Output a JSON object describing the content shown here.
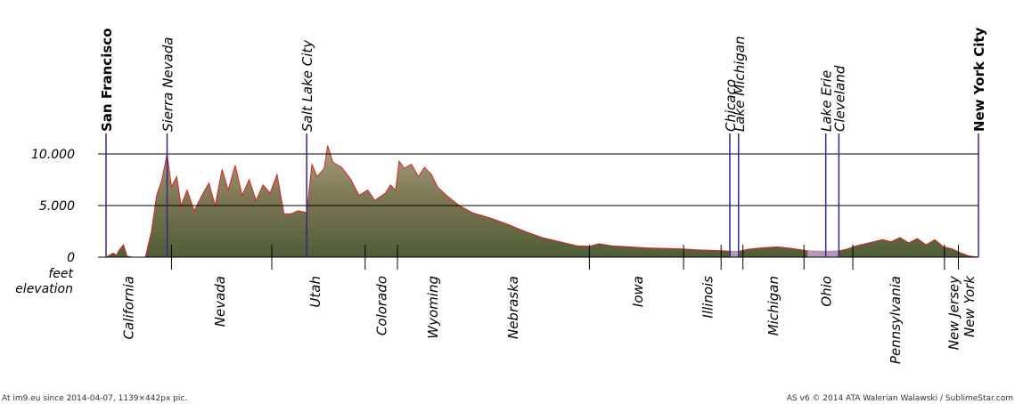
{
  "chart_data": {
    "type": "area",
    "y_ticks": [
      "10.000",
      "5.000",
      "0"
    ],
    "y_tick_values": [
      10000,
      5000,
      0
    ],
    "y_unit_label": [
      "feet",
      "elevation"
    ],
    "ylim": [
      0,
      10000
    ],
    "xlim": [
      0,
      100
    ],
    "grid": true,
    "fill_color": "#7a7550",
    "line_color": "#dd2222",
    "marker_color": "#2a2a8a",
    "places": [
      {
        "label": "San Francisco",
        "bold": true,
        "x": 0.0
      },
      {
        "label": "Sierra Nevada",
        "bold": false,
        "x": 7.0
      },
      {
        "label": "Salt Lake City",
        "bold": false,
        "x": 23.0
      },
      {
        "label": "Chicaco",
        "bold": false,
        "x": 71.5
      },
      {
        "label": "Lake Michigan",
        "bold": false,
        "x": 72.5
      },
      {
        "label": "Lake Erie",
        "bold": false,
        "x": 82.5
      },
      {
        "label": "Cleveland",
        "bold": false,
        "x": 84.0
      },
      {
        "label": "New York City",
        "bold": true,
        "x": 100.0
      }
    ],
    "states": [
      {
        "label": "California",
        "x": 2.6
      },
      {
        "label": "Nevada",
        "x": 13.1
      },
      {
        "label": "Utah",
        "x": 24.0
      },
      {
        "label": "Colorado",
        "x": 31.6
      },
      {
        "label": "Wyoming",
        "x": 37.5
      },
      {
        "label": "Nebraska",
        "x": 46.7
      },
      {
        "label": "Iowa",
        "x": 61.0
      },
      {
        "label": "Illinois",
        "x": 69.0
      },
      {
        "label": "Michigan",
        "x": 76.5
      },
      {
        "label": "Ohio",
        "x": 82.6
      },
      {
        "label": "Pennsylvania",
        "x": 90.5
      },
      {
        "label": "New Jersey",
        "x": 97.2
      },
      {
        "label": "New York",
        "x": 99.0
      }
    ],
    "state_borders_x": [
      7.5,
      19.0,
      29.7,
      33.4,
      55.4,
      66.2,
      70.5,
      73.0,
      80.0,
      85.6,
      96.1,
      97.7
    ],
    "profile": [
      [
        0,
        0
      ],
      [
        0.8,
        400
      ],
      [
        1.2,
        200
      ],
      [
        1.5,
        700
      ],
      [
        2.0,
        1200
      ],
      [
        2.4,
        100
      ],
      [
        3.0,
        0
      ],
      [
        4.5,
        0
      ],
      [
        5.2,
        2500
      ],
      [
        5.8,
        6000
      ],
      [
        6.4,
        7500
      ],
      [
        7.0,
        10000
      ],
      [
        7.5,
        6800
      ],
      [
        8.1,
        7800
      ],
      [
        8.6,
        5000
      ],
      [
        9.3,
        6500
      ],
      [
        10.1,
        4500
      ],
      [
        11.0,
        6000
      ],
      [
        11.8,
        7200
      ],
      [
        12.5,
        5000
      ],
      [
        13.3,
        8500
      ],
      [
        14.0,
        6500
      ],
      [
        14.8,
        8900
      ],
      [
        15.6,
        6000
      ],
      [
        16.4,
        7500
      ],
      [
        17.2,
        5500
      ],
      [
        18.0,
        7000
      ],
      [
        18.8,
        6200
      ],
      [
        19.6,
        8000
      ],
      [
        20.4,
        4200
      ],
      [
        21.2,
        4200
      ],
      [
        22.0,
        4500
      ],
      [
        22.6,
        4400
      ],
      [
        23.0,
        4300
      ],
      [
        23.6,
        9000
      ],
      [
        24.2,
        7800
      ],
      [
        25.0,
        8600
      ],
      [
        25.4,
        10800
      ],
      [
        26.0,
        9200
      ],
      [
        27.0,
        8700
      ],
      [
        28.0,
        7600
      ],
      [
        29.0,
        6000
      ],
      [
        30.0,
        6500
      ],
      [
        30.8,
        5500
      ],
      [
        32.0,
        6200
      ],
      [
        32.6,
        7000
      ],
      [
        33.2,
        6500
      ],
      [
        33.6,
        9300
      ],
      [
        34.2,
        8600
      ],
      [
        35.0,
        9000
      ],
      [
        35.8,
        7800
      ],
      [
        36.5,
        8700
      ],
      [
        37.3,
        8000
      ],
      [
        38.0,
        6800
      ],
      [
        39.0,
        6000
      ],
      [
        40.5,
        5000
      ],
      [
        42.0,
        4300
      ],
      [
        44.0,
        3800
      ],
      [
        46.0,
        3200
      ],
      [
        48.0,
        2500
      ],
      [
        50.0,
        1900
      ],
      [
        52.0,
        1500
      ],
      [
        54.0,
        1100
      ],
      [
        55.4,
        1050
      ],
      [
        56.5,
        1300
      ],
      [
        58.0,
        1100
      ],
      [
        60.0,
        1000
      ],
      [
        62.0,
        900
      ],
      [
        64.0,
        850
      ],
      [
        66.0,
        800
      ],
      [
        68.0,
        700
      ],
      [
        70.0,
        650
      ],
      [
        71.5,
        580
      ],
      [
        72.5,
        560
      ],
      [
        73.5,
        750
      ],
      [
        75.0,
        900
      ],
      [
        77.0,
        1000
      ],
      [
        79.0,
        800
      ],
      [
        80.5,
        600
      ],
      [
        81.5,
        570
      ],
      [
        83.0,
        570
      ],
      [
        84.0,
        600
      ],
      [
        85.0,
        800
      ],
      [
        86.0,
        1100
      ],
      [
        87.5,
        1400
      ],
      [
        89.0,
        1700
      ],
      [
        90.0,
        1500
      ],
      [
        91.0,
        1900
      ],
      [
        92.0,
        1400
      ],
      [
        93.0,
        1800
      ],
      [
        94.0,
        1200
      ],
      [
        95.0,
        1700
      ],
      [
        96.0,
        1000
      ],
      [
        97.0,
        800
      ],
      [
        98.0,
        400
      ],
      [
        99.0,
        100
      ],
      [
        100.0,
        0
      ]
    ]
  },
  "footer": {
    "left": "At im9.eu  since 2014-04-07, 1139×442px pic.",
    "right": "AS v6 © 2014 ATA Walerian Walawski / SublimeStar.com"
  }
}
